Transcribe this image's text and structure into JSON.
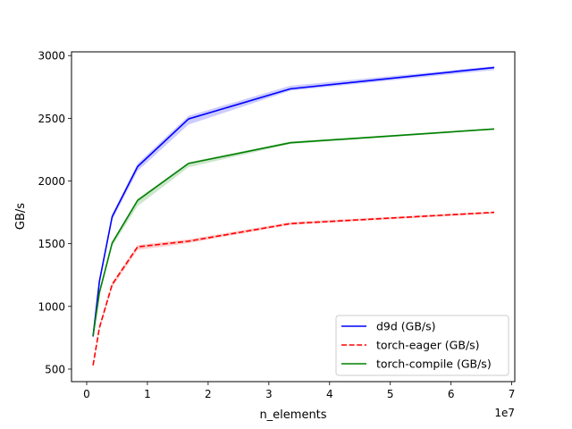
{
  "chart_data": {
    "type": "line",
    "title": "",
    "xlabel": "n_elements",
    "ylabel": "GB/s",
    "x_offset_text": "1e7",
    "xlim": [
      -2500000,
      70500000
    ],
    "ylim": [
      400,
      3030
    ],
    "xticks": [
      0,
      10000000,
      20000000,
      30000000,
      40000000,
      50000000,
      60000000,
      70000000
    ],
    "xtick_labels": [
      "0",
      "1",
      "2",
      "3",
      "4",
      "5",
      "6",
      "7"
    ],
    "yticks": [
      500,
      1000,
      1500,
      2000,
      2500,
      3000
    ],
    "ytick_labels": [
      "500",
      "1000",
      "1500",
      "2000",
      "2500",
      "3000"
    ],
    "grid": false,
    "legend_position": "lower-right",
    "x": [
      1048576,
      2097152,
      4194304,
      8388608,
      16777216,
      33554432,
      67108864
    ],
    "series": [
      {
        "name": "d9d (GB/s)",
        "color": "#0000ff",
        "linestyle": "solid",
        "values": [
          760,
          1200,
          1715,
          2115,
          2495,
          2735,
          2905
        ],
        "band_low": [
          750,
          1180,
          1690,
          2080,
          2450,
          2720,
          2885
        ],
        "band_high": [
          775,
          1220,
          1735,
          2140,
          2520,
          2760,
          2915
        ]
      },
      {
        "name": "torch-eager (GB/s)",
        "color": "#ff0000",
        "linestyle": "dashed",
        "values": [
          530,
          830,
          1175,
          1475,
          1520,
          1660,
          1750
        ],
        "band_low": [
          520,
          810,
          1150,
          1450,
          1505,
          1650,
          1740
        ],
        "band_high": [
          545,
          850,
          1190,
          1490,
          1535,
          1672,
          1757
        ]
      },
      {
        "name": "torch-compile (GB/s)",
        "color": "#008000",
        "linestyle": "solid",
        "values": [
          765,
          1110,
          1505,
          1845,
          2140,
          2305,
          2415
        ],
        "band_low": [
          755,
          1090,
          1480,
          1800,
          2110,
          2295,
          2408
        ],
        "band_high": [
          775,
          1125,
          1520,
          1860,
          2150,
          2315,
          2420
        ]
      }
    ]
  }
}
